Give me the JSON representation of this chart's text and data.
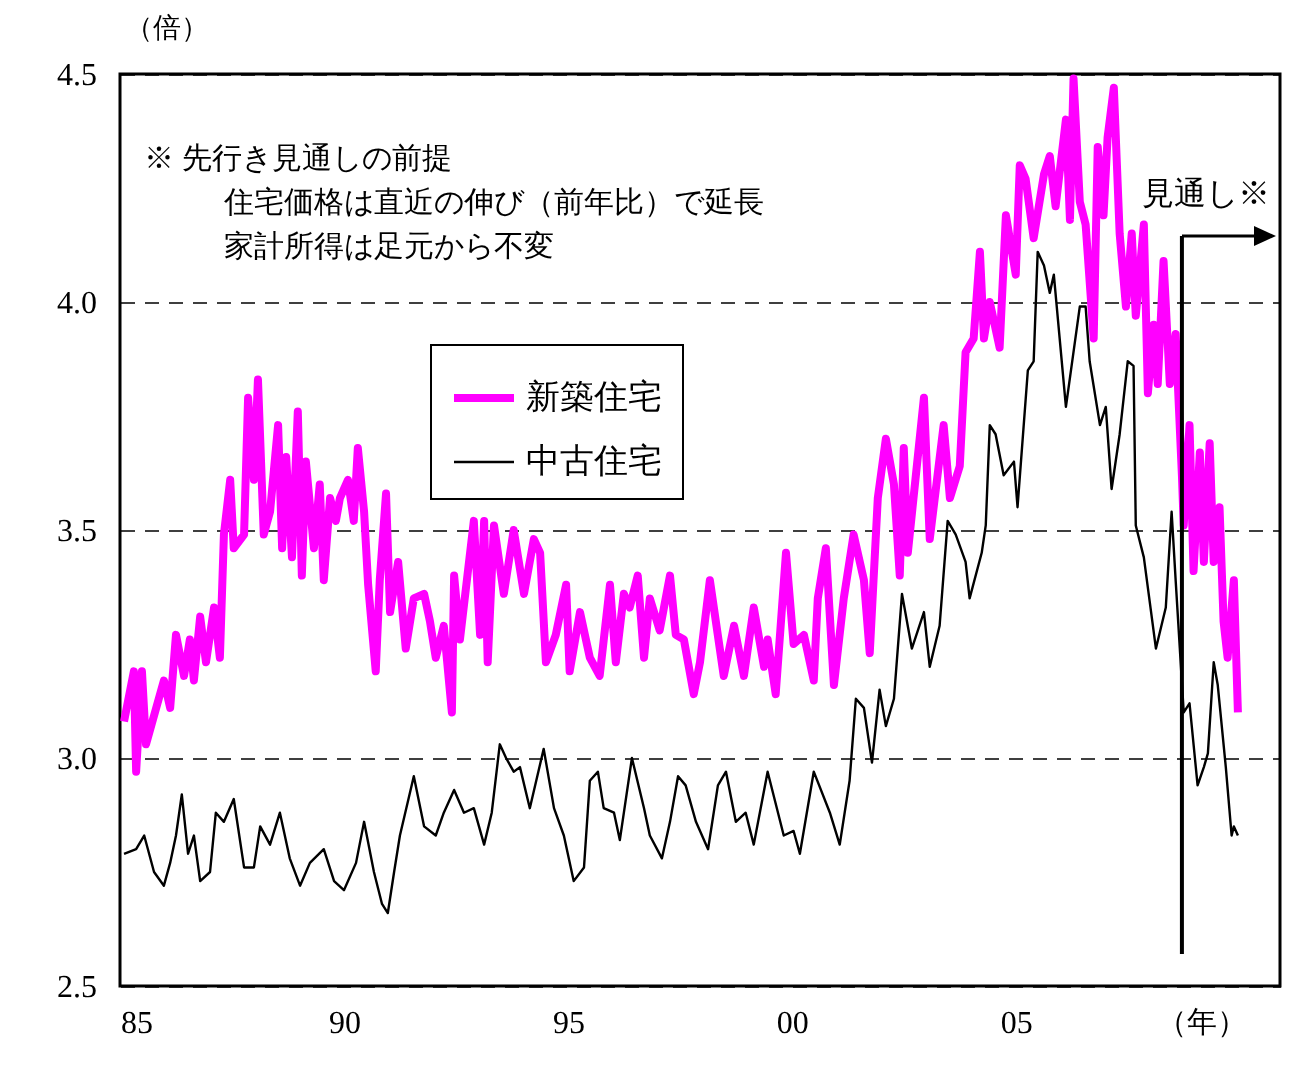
{
  "chart_data": {
    "type": "line",
    "ylabel": "（倍）",
    "xlabel": "（年）",
    "xlim": [
      1985,
      2010.9
    ],
    "xticks": [
      {
        "value": 1985,
        "label": "85"
      },
      {
        "value": 1990,
        "label": "90"
      },
      {
        "value": 1995,
        "label": "95"
      },
      {
        "value": 2000,
        "label": "00"
      },
      {
        "value": 2005,
        "label": "05"
      }
    ],
    "ylim": [
      2.5,
      4.5
    ],
    "yticks": [
      2.5,
      {
        "value": 3,
        "label": "3.0"
      },
      3.5,
      {
        "value": 4,
        "label": "4.0"
      },
      4.5
    ],
    "grid": "y",
    "legend": "top",
    "annotations": [
      "※ 先行き見通しの前提",
      "住宅価格は直近の伸び（前年比）で延長",
      "家計所得は足元から不変"
    ],
    "ref_lines": [
      {
        "axis": "x",
        "value": 2008.71,
        "label": "見通し※"
      }
    ],
    "series": [
      {
        "name": "新築住宅",
        "color": "#ff00ff",
        "x": [
          1985.09,
          1985.31,
          1985.36,
          1985.49,
          1985.58,
          1985.98,
          1986.12,
          1986.25,
          1986.43,
          1986.56,
          1986.65,
          1986.79,
          1986.92,
          1987.1,
          1987.23,
          1987.32,
          1987.46,
          1987.54,
          1987.77,
          1987.86,
          1987.99,
          1988.08,
          1988.21,
          1988.35,
          1988.53,
          1988.62,
          1988.71,
          1988.84,
          1988.97,
          1989.06,
          1989.15,
          1989.33,
          1989.46,
          1989.55,
          1989.69,
          1989.82,
          1989.91,
          1990.09,
          1990.22,
          1990.31,
          1990.45,
          1990.54,
          1990.71,
          1990.8,
          1990.94,
          1991.03,
          1991.21,
          1991.38,
          1991.56,
          1991.79,
          1991.92,
          1992.05,
          1992.23,
          1992.41,
          1992.46,
          1992.59,
          1992.9,
          1993.04,
          1993.13,
          1993.21,
          1993.35,
          1993.57,
          1993.79,
          1994.02,
          1994.24,
          1994.38,
          1994.51,
          1994.73,
          1994.96,
          1995.04,
          1995.27,
          1995.49,
          1995.71,
          1995.94,
          1996.07,
          1996.25,
          1996.38,
          1996.56,
          1996.7,
          1996.83,
          1997.05,
          1997.28,
          1997.41,
          1997.59,
          1997.81,
          1997.95,
          1998.17,
          1998.48,
          1998.71,
          1998.93,
          1999.15,
          1999.38,
          1999.46,
          1999.64,
          1999.87,
          2000.04,
          2000.27,
          2000.49,
          2000.58,
          2000.76,
          2000.94,
          2001.16,
          2001.38,
          2001.61,
          2001.74,
          2001.92,
          2002.1,
          2002.28,
          2002.41,
          2002.5,
          2002.59,
          2002.77,
          2002.95,
          2003.08,
          2003.39,
          2003.53,
          2003.75,
          2003.88,
          2004.06,
          2004.2,
          2004.29,
          2004.42,
          2004.64,
          2004.78,
          2005.0,
          2005.09,
          2005.22,
          2005.4,
          2005.63,
          2005.76,
          2005.89,
          2006.12,
          2006.21,
          2006.29,
          2006.43,
          2006.56,
          2006.74,
          2006.83,
          2006.96,
          2007.05,
          2007.19,
          2007.32,
          2007.46,
          2007.59,
          2007.68,
          2007.86,
          2007.95,
          2008.08,
          2008.17,
          2008.3,
          2008.44,
          2008.57,
          2008.71,
          2008.75,
          2008.88,
          2008.97,
          2009.11,
          2009.2,
          2009.33,
          2009.42,
          2009.55,
          2009.64,
          2009.73,
          2009.87,
          2009.96
        ],
        "values": [
          3.08,
          3.19,
          2.97,
          3.19,
          3.03,
          3.17,
          3.11,
          3.27,
          3.18,
          3.26,
          3.17,
          3.31,
          3.21,
          3.33,
          3.22,
          3.49,
          3.61,
          3.46,
          3.49,
          3.79,
          3.61,
          3.83,
          3.49,
          3.54,
          3.73,
          3.46,
          3.66,
          3.44,
          3.76,
          3.4,
          3.65,
          3.46,
          3.6,
          3.39,
          3.57,
          3.52,
          3.57,
          3.61,
          3.52,
          3.68,
          3.54,
          3.38,
          3.19,
          3.39,
          3.58,
          3.32,
          3.43,
          3.24,
          3.35,
          3.36,
          3.3,
          3.22,
          3.29,
          3.1,
          3.4,
          3.26,
          3.52,
          3.27,
          3.52,
          3.21,
          3.51,
          3.36,
          3.5,
          3.36,
          3.48,
          3.45,
          3.21,
          3.27,
          3.38,
          3.19,
          3.32,
          3.22,
          3.18,
          3.38,
          3.21,
          3.36,
          3.33,
          3.4,
          3.22,
          3.35,
          3.28,
          3.4,
          3.27,
          3.26,
          3.14,
          3.21,
          3.39,
          3.18,
          3.29,
          3.18,
          3.33,
          3.2,
          3.26,
          3.14,
          3.45,
          3.25,
          3.27,
          3.17,
          3.35,
          3.46,
          3.16,
          3.35,
          3.49,
          3.39,
          3.23,
          3.57,
          3.7,
          3.6,
          3.4,
          3.68,
          3.45,
          3.62,
          3.79,
          3.48,
          3.73,
          3.57,
          3.64,
          3.89,
          3.92,
          4.11,
          3.92,
          4.0,
          3.9,
          4.19,
          4.06,
          4.3,
          4.27,
          4.14,
          4.28,
          4.32,
          4.21,
          4.4,
          4.18,
          4.49,
          4.22,
          4.17,
          3.92,
          4.34,
          4.19,
          4.36,
          4.47,
          4.15,
          3.99,
          4.15,
          3.97,
          4.17,
          3.8,
          3.95,
          3.82,
          4.09,
          3.82,
          3.93,
          3.62,
          3.51,
          3.73,
          3.41,
          3.67,
          3.43,
          3.69,
          3.43,
          3.55,
          3.3,
          3.22,
          3.39,
          3.1
        ]
      },
      {
        "name": "中古住宅",
        "color": "#000000",
        "x": [
          1985.09,
          1985.36,
          1985.54,
          1985.76,
          1985.98,
          1986.12,
          1986.25,
          1986.38,
          1986.52,
          1986.65,
          1986.79,
          1987.01,
          1987.14,
          1987.32,
          1987.54,
          1987.77,
          1987.99,
          1988.13,
          1988.35,
          1988.57,
          1988.79,
          1989.02,
          1989.24,
          1989.55,
          1989.78,
          1990.0,
          1990.27,
          1990.45,
          1990.67,
          1990.85,
          1990.98,
          1991.12,
          1991.25,
          1991.56,
          1991.79,
          1992.05,
          1992.23,
          1992.46,
          1992.68,
          1992.9,
          1993.13,
          1993.3,
          1993.48,
          1993.62,
          1993.79,
          1993.93,
          1994.15,
          1994.46,
          1994.69,
          1994.91,
          1995.13,
          1995.36,
          1995.49,
          1995.67,
          1995.8,
          1996.03,
          1996.16,
          1996.43,
          1996.7,
          1996.83,
          1997.1,
          1997.28,
          1997.46,
          1997.63,
          1997.86,
          1998.13,
          1998.35,
          1998.53,
          1998.75,
          1998.97,
          1999.15,
          1999.46,
          1999.82,
          2000.04,
          2000.18,
          2000.49,
          2000.85,
          2001.07,
          2001.29,
          2001.43,
          2001.61,
          2001.79,
          2001.96,
          2002.1,
          2002.28,
          2002.46,
          2002.68,
          2002.95,
          2003.08,
          2003.3,
          2003.48,
          2003.66,
          2003.88,
          2003.97,
          2004.24,
          2004.33,
          2004.42,
          2004.55,
          2004.73,
          2004.96,
          2005.04,
          2005.27,
          2005.4,
          2005.49,
          2005.63,
          2005.76,
          2005.85,
          2006.12,
          2006.43,
          2006.56,
          2006.65,
          2006.88,
          2007.01,
          2007.14,
          2007.32,
          2007.5,
          2007.63,
          2007.68,
          2007.86,
          2008.13,
          2008.35,
          2008.48,
          2008.57,
          2008.75,
          2008.88,
          2009.06,
          2009.2,
          2009.29,
          2009.42,
          2009.51,
          2009.69,
          2009.82,
          2009.87,
          2009.96
        ],
        "values": [
          2.79,
          2.8,
          2.83,
          2.75,
          2.72,
          2.77,
          2.83,
          2.92,
          2.79,
          2.83,
          2.73,
          2.75,
          2.88,
          2.86,
          2.91,
          2.76,
          2.76,
          2.85,
          2.81,
          2.88,
          2.78,
          2.72,
          2.77,
          2.8,
          2.73,
          2.71,
          2.77,
          2.86,
          2.75,
          2.68,
          2.66,
          2.75,
          2.83,
          2.96,
          2.85,
          2.83,
          2.88,
          2.93,
          2.88,
          2.89,
          2.81,
          2.88,
          3.03,
          3.0,
          2.97,
          2.98,
          2.89,
          3.02,
          2.89,
          2.83,
          2.73,
          2.76,
          2.95,
          2.97,
          2.89,
          2.88,
          2.82,
          3.0,
          2.89,
          2.83,
          2.78,
          2.86,
          2.96,
          2.94,
          2.86,
          2.8,
          2.94,
          2.97,
          2.86,
          2.88,
          2.81,
          2.97,
          2.83,
          2.84,
          2.79,
          2.97,
          2.88,
          2.81,
          2.95,
          3.13,
          3.11,
          2.99,
          3.15,
          3.07,
          3.13,
          3.36,
          3.24,
          3.32,
          3.2,
          3.29,
          3.52,
          3.49,
          3.43,
          3.35,
          3.45,
          3.51,
          3.73,
          3.71,
          3.62,
          3.65,
          3.55,
          3.85,
          3.87,
          4.11,
          4.08,
          4.02,
          4.06,
          3.77,
          3.99,
          3.99,
          3.87,
          3.73,
          3.77,
          3.59,
          3.71,
          3.87,
          3.86,
          3.51,
          3.44,
          3.24,
          3.33,
          3.54,
          3.39,
          3.1,
          3.12,
          2.94,
          2.98,
          3.01,
          3.21,
          3.16,
          2.98,
          2.83,
          2.85,
          2.83
        ]
      }
    ]
  }
}
